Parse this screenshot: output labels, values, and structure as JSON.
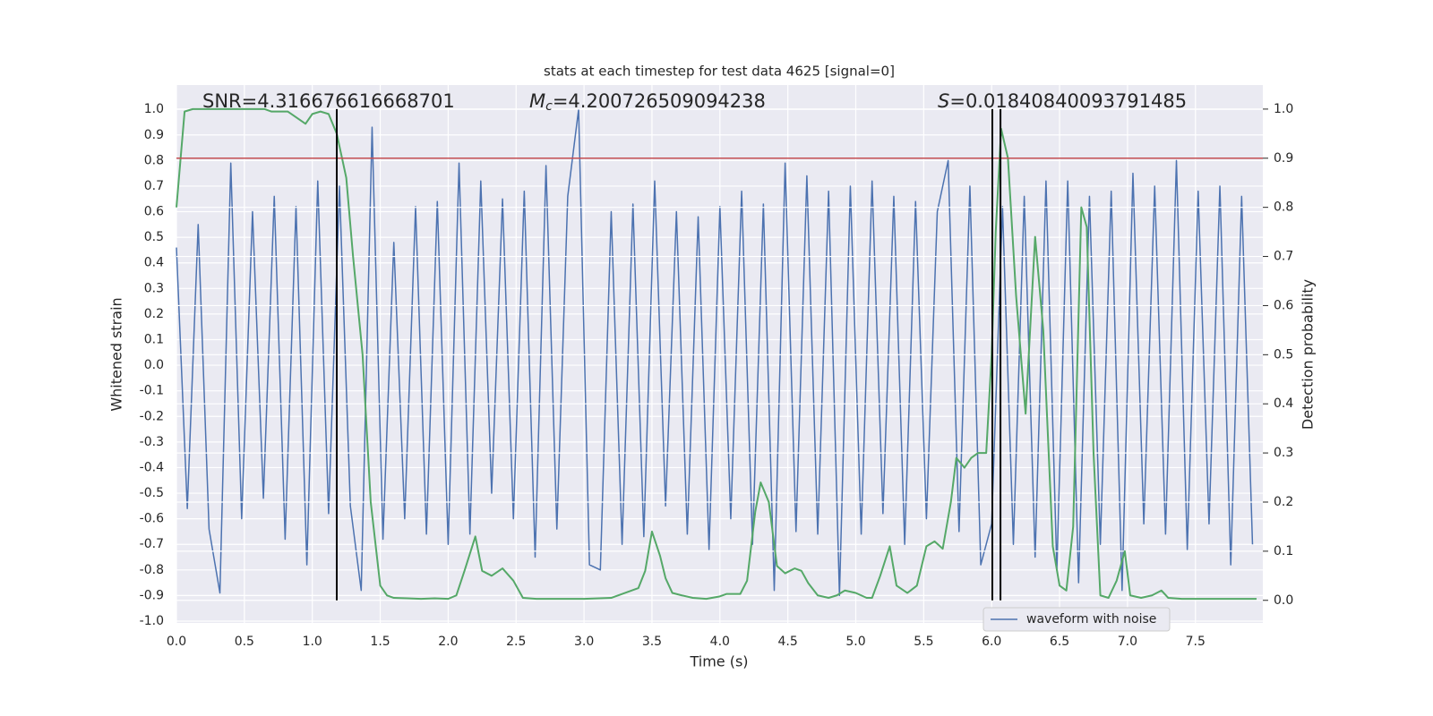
{
  "chart_data": {
    "type": "line",
    "title": "stats at each timestep for test data 4625 [signal=0]",
    "xlabel": "Time (s)",
    "ylabel": "Whitened strain",
    "y2label": "Detection probability",
    "annotations": {
      "snr": "SNR=4.316676616668701",
      "mc_symbol": "M",
      "mc_subscript": "c",
      "mc_value": "=4.200726509094238",
      "s_symbol": "S",
      "s_value": "=0.01840840093791485"
    },
    "xlim": [
      0,
      7.996
    ],
    "ylim": [
      -1.007,
      1.095
    ],
    "y2lim": [
      -0.046,
      1.049
    ],
    "xticks": [
      {
        "value": 0,
        "label": "0.0"
      },
      0.5,
      {
        "value": 1,
        "label": "1.0"
      },
      1.5,
      {
        "value": 2,
        "label": "2.0"
      },
      2.5,
      {
        "value": 3,
        "label": "3.0"
      },
      3.5,
      {
        "value": 4,
        "label": "4.0"
      },
      4.5,
      {
        "value": 5,
        "label": "5.0"
      },
      5.5,
      {
        "value": 6,
        "label": "6.0"
      },
      6.5,
      {
        "value": 7,
        "label": "7.0"
      },
      7.5
    ],
    "yticks": [
      {
        "value": -1,
        "label": "-1.0"
      },
      -0.9,
      -0.8,
      -0.7,
      -0.6,
      -0.5,
      -0.4,
      -0.3,
      -0.2,
      -0.1,
      {
        "value": 0,
        "label": "0.0"
      },
      0.1,
      0.2,
      0.3,
      0.4,
      0.5,
      0.6,
      0.7,
      0.8,
      0.9,
      {
        "value": 1,
        "label": "1.0"
      }
    ],
    "y2ticks": [
      {
        "value": 0,
        "label": "0.0"
      },
      0.1,
      0.2,
      0.3,
      0.4,
      0.5,
      0.6,
      0.7,
      0.8,
      0.9,
      {
        "value": 1,
        "label": "1.0"
      }
    ],
    "grid": true,
    "legend": "lower right",
    "series": [
      {
        "name": "waveform with noise",
        "color": "#4c72b0",
        "axis": "y",
        "x": [
          0,
          0.08,
          0.16,
          0.24,
          0.32,
          0.4,
          0.48,
          0.56,
          0.64,
          0.72,
          0.8,
          0.88,
          0.96,
          1.04,
          1.12,
          1.2,
          1.28,
          1.36,
          1.44,
          1.52,
          1.6,
          1.68,
          1.76,
          1.84,
          1.92,
          2.0,
          2.08,
          2.16,
          2.24,
          2.32,
          2.4,
          2.48,
          2.56,
          2.64,
          2.72,
          2.8,
          2.88,
          2.96,
          3.04,
          3.12,
          3.2,
          3.28,
          3.36,
          3.44,
          3.52,
          3.6,
          3.68,
          3.76,
          3.84,
          3.92,
          4.0,
          4.08,
          4.16,
          4.24,
          4.32,
          4.4,
          4.48,
          4.56,
          4.64,
          4.72,
          4.8,
          4.88,
          4.96,
          5.04,
          5.12,
          5.2,
          5.28,
          5.36,
          5.44,
          5.52,
          5.6,
          5.68,
          5.76,
          5.84,
          5.92,
          6.0,
          6.08,
          6.16,
          6.24,
          6.32,
          6.4,
          6.48,
          6.56,
          6.64,
          6.72,
          6.8,
          6.88,
          6.96,
          7.04,
          7.12,
          7.2,
          7.28,
          7.36,
          7.44,
          7.52,
          7.6,
          7.68,
          7.76,
          7.84,
          7.92
        ],
        "values": [
          0.46,
          -0.56,
          0.55,
          -0.64,
          -0.89,
          0.79,
          -0.6,
          0.6,
          -0.52,
          0.66,
          -0.68,
          0.62,
          -0.78,
          0.72,
          -0.58,
          0.7,
          -0.55,
          -0.88,
          0.93,
          -0.68,
          0.48,
          -0.6,
          0.62,
          -0.66,
          0.64,
          -0.7,
          0.79,
          -0.66,
          0.72,
          -0.5,
          0.65,
          -0.6,
          0.68,
          -0.75,
          0.78,
          -0.64,
          0.66,
          1.0,
          -0.78,
          -0.8,
          0.6,
          -0.7,
          0.63,
          -0.67,
          0.72,
          -0.55,
          0.6,
          -0.66,
          0.58,
          -0.72,
          0.62,
          -0.6,
          0.68,
          -0.7,
          0.63,
          -0.88,
          0.79,
          -0.65,
          0.74,
          -0.66,
          0.68,
          -0.9,
          0.7,
          -0.66,
          0.72,
          -0.58,
          0.66,
          -0.7,
          0.64,
          -0.6,
          0.6,
          0.8,
          -0.65,
          0.7,
          -0.78,
          -0.62,
          0.62,
          -0.7,
          0.66,
          -0.75,
          0.72,
          -0.8,
          0.72,
          -0.85,
          0.66,
          -0.7,
          0.68,
          -0.88,
          0.75,
          -0.62,
          0.7,
          -0.66,
          0.8,
          -0.72,
          0.68,
          -0.62,
          0.7,
          -0.78,
          0.66,
          -0.7
        ]
      },
      {
        "color": "#55a868",
        "axis": "y2",
        "x": [
          0,
          0.06,
          0.12,
          0.3,
          0.5,
          0.65,
          0.7,
          0.82,
          0.95,
          1.0,
          1.06,
          1.12,
          1.18,
          1.25,
          1.3,
          1.37,
          1.43,
          1.5,
          1.55,
          1.6,
          1.7,
          1.8,
          1.9,
          2.0,
          2.06,
          2.12,
          2.2,
          2.25,
          2.32,
          2.4,
          2.48,
          2.55,
          2.65,
          2.8,
          3.0,
          3.2,
          3.35,
          3.4,
          3.45,
          3.5,
          3.56,
          3.6,
          3.65,
          3.72,
          3.8,
          3.9,
          4.0,
          4.05,
          4.15,
          4.2,
          4.26,
          4.3,
          4.36,
          4.42,
          4.48,
          4.55,
          4.6,
          4.65,
          4.72,
          4.8,
          4.86,
          4.92,
          5.0,
          5.08,
          5.12,
          5.18,
          5.25,
          5.3,
          5.38,
          5.45,
          5.52,
          5.58,
          5.64,
          5.7,
          5.74,
          5.8,
          5.85,
          5.9,
          5.96,
          6.0,
          6.03,
          6.07,
          6.12,
          6.18,
          6.25,
          6.32,
          6.38,
          6.45,
          6.5,
          6.55,
          6.6,
          6.66,
          6.7,
          6.75,
          6.8,
          6.86,
          6.92,
          6.98,
          7.02,
          7.1,
          7.18,
          7.25,
          7.3,
          7.4,
          7.6,
          7.95
        ],
        "values": [
          0.8,
          0.995,
          1.0,
          1.0,
          1.0,
          1.0,
          0.995,
          0.995,
          0.97,
          0.99,
          0.995,
          0.99,
          0.95,
          0.86,
          0.7,
          0.5,
          0.2,
          0.03,
          0.01,
          0.005,
          0.004,
          0.003,
          0.004,
          0.003,
          0.01,
          0.06,
          0.13,
          0.06,
          0.05,
          0.065,
          0.04,
          0.005,
          0.003,
          0.003,
          0.003,
          0.005,
          0.02,
          0.025,
          0.06,
          0.14,
          0.09,
          0.045,
          0.015,
          0.01,
          0.005,
          0.003,
          0.008,
          0.013,
          0.013,
          0.04,
          0.18,
          0.24,
          0.2,
          0.07,
          0.055,
          0.065,
          0.06,
          0.035,
          0.01,
          0.005,
          0.01,
          0.02,
          0.015,
          0.005,
          0.005,
          0.05,
          0.11,
          0.03,
          0.015,
          0.03,
          0.11,
          0.12,
          0.105,
          0.2,
          0.29,
          0.27,
          0.29,
          0.3,
          0.3,
          0.5,
          0.75,
          0.96,
          0.9,
          0.62,
          0.38,
          0.74,
          0.55,
          0.11,
          0.03,
          0.02,
          0.15,
          0.8,
          0.76,
          0.3,
          0.01,
          0.005,
          0.04,
          0.1,
          0.01,
          0.005,
          0.01,
          0.02,
          0.005,
          0.003,
          0.003,
          0.003
        ]
      }
    ],
    "hlines": [
      {
        "value": 0.9,
        "axis": "y2",
        "color": "#c44e52"
      }
    ],
    "vlines": {
      "x": [
        1.18,
        6.005,
        6.065
      ],
      "span": [
        0,
        1
      ],
      "axis": "y2",
      "color": "#000000"
    }
  }
}
